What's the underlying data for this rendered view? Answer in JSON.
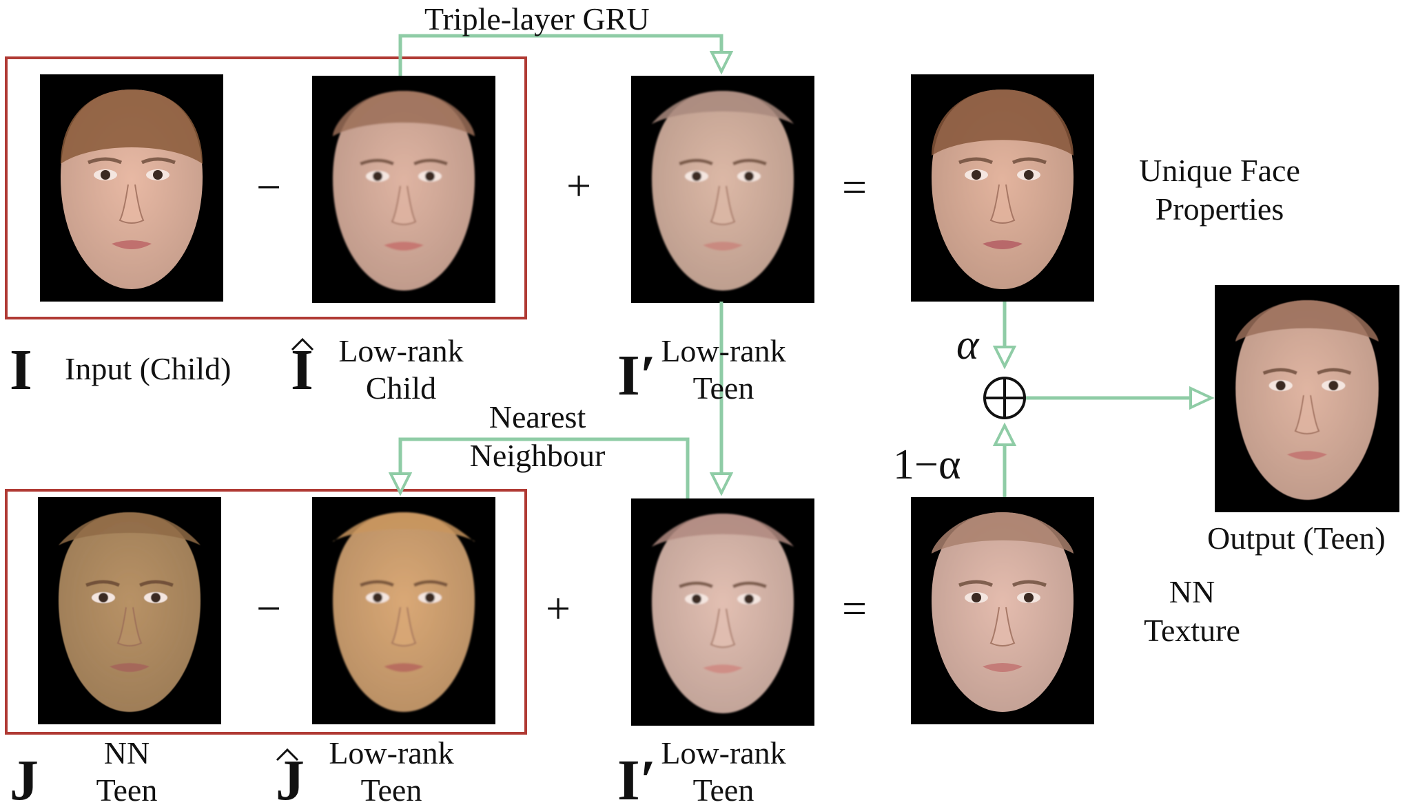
{
  "arrows": {
    "gru_label": "Triple-layer GRU",
    "nn_label_line1": "Nearest",
    "nn_label_line2": "Neighbour"
  },
  "top_row": {
    "symbol_input": "I",
    "label_input": "Input (Child)",
    "symbol_lowrank_child": "I",
    "label_lowrank_child_line1": "Low-rank",
    "label_lowrank_child_line2": "Child",
    "symbol_lowrank_teen": "I′",
    "label_lowrank_teen_line1": "Low-rank",
    "label_lowrank_teen_line2": "Teen",
    "label_unique_line1": "Unique Face",
    "label_unique_line2": "Properties",
    "op_minus": "−",
    "op_plus": "+",
    "op_equals": "="
  },
  "bottom_row": {
    "symbol_nn": "J",
    "label_nn_line1": "NN",
    "label_nn_line2": "Teen",
    "symbol_lowrank_nn": "J",
    "label_lowrank_nn_line1": "Low-rank",
    "label_lowrank_nn_line2": "Teen",
    "symbol_lowrank_teen": "I′",
    "label_lowrank_teen_line1": "Low-rank",
    "label_lowrank_teen_line2": "Teen",
    "label_texture_line1": "NN",
    "label_texture_line2": "Texture",
    "op_minus": "−",
    "op_plus": "+",
    "op_equals": "="
  },
  "blend": {
    "alpha": "α",
    "one_minus_alpha": "1−α",
    "output_label": "Output (Teen)"
  },
  "colors": {
    "arrow": "#8fcca6",
    "box": "#b03a34",
    "panel_bg": "#000000"
  }
}
